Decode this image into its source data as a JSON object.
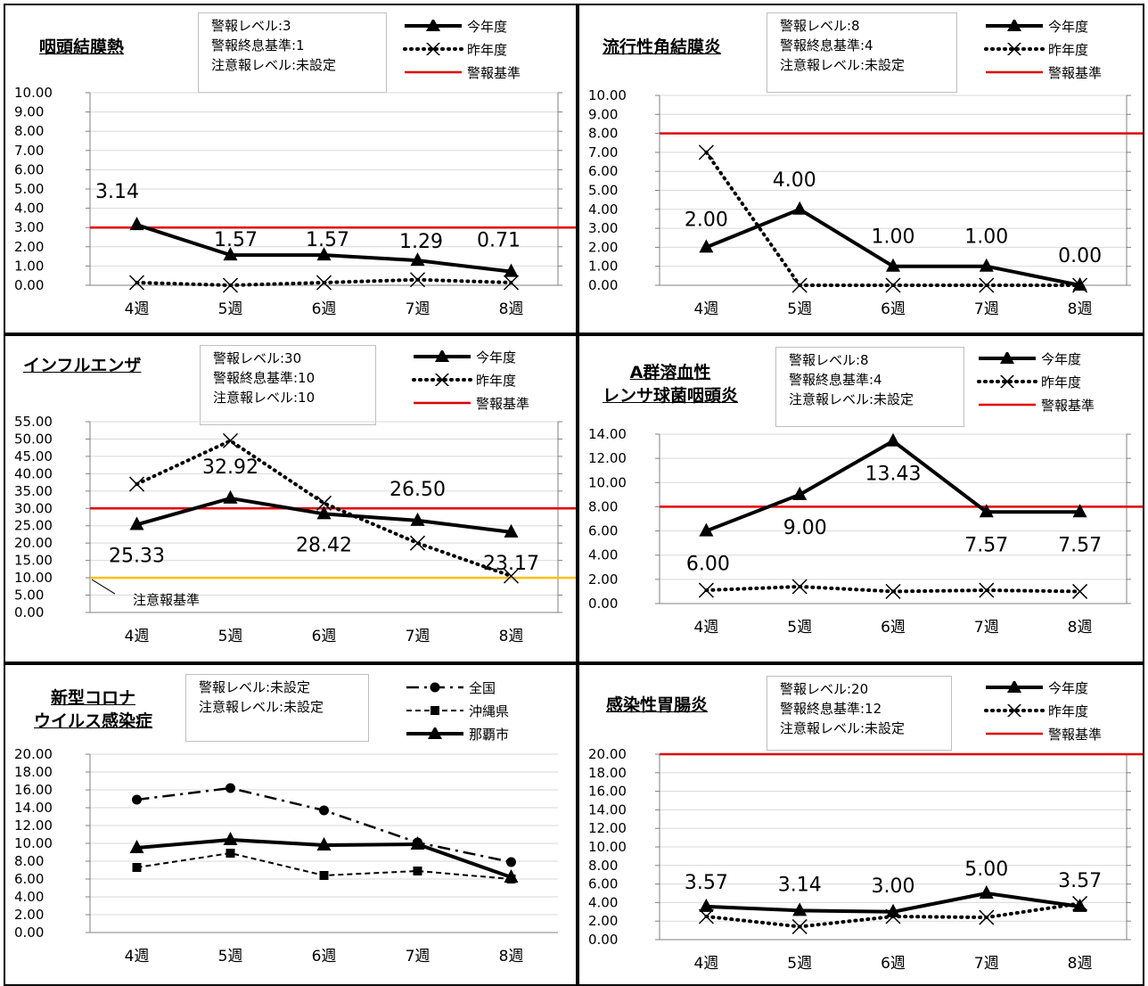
{
  "charts": [
    {
      "id": "p1",
      "title_lines": [
        "咽頭結膜熱"
      ],
      "info": [
        "警報レベル:3",
        "警報終息基準:1",
        "注意報レベル:未設定"
      ],
      "legend": [
        {
          "label": "今年度",
          "style": "solid-triangle"
        },
        {
          "label": "昨年度",
          "style": "dotted-x"
        },
        {
          "label": "警報基準",
          "style": "red-line"
        }
      ]
    },
    {
      "id": "p2",
      "title_lines": [
        "流行性角結膜炎"
      ],
      "info": [
        "警報レベル:8",
        "警報終息基準:4",
        "注意報レベル:未設定"
      ],
      "legend": [
        {
          "label": "今年度",
          "style": "solid-triangle"
        },
        {
          "label": "昨年度",
          "style": "dotted-x"
        },
        {
          "label": "警報基準",
          "style": "red-line"
        }
      ]
    },
    {
      "id": "p3",
      "title_lines": [
        "インフルエンザ"
      ],
      "info": [
        "警報レベル:30",
        "警報終息基準:10",
        "注意報レベル:10"
      ],
      "legend": [
        {
          "label": "今年度",
          "style": "solid-triangle"
        },
        {
          "label": "昨年度",
          "style": "dotted-x"
        },
        {
          "label": "警報基準",
          "style": "red-line"
        }
      ]
    },
    {
      "id": "p4",
      "title_lines": [
        "A群溶血性",
        "レンサ球菌咽頭炎"
      ],
      "info": [
        "警報レベル:8",
        "警報終息基準:4",
        "注意報レベル:未設定"
      ],
      "legend": [
        {
          "label": "今年度",
          "style": "solid-triangle"
        },
        {
          "label": "昨年度",
          "style": "dotted-x"
        },
        {
          "label": "警報基準",
          "style": "red-line"
        }
      ]
    },
    {
      "id": "p5",
      "title_lines": [
        "新型コロナ",
        "ウイルス感染症"
      ],
      "info": [
        "警報レベル:未設定",
        "注意報レベル:未設定"
      ],
      "legend": [
        {
          "label": "全国",
          "style": "dashdot-circle"
        },
        {
          "label": "沖縄県",
          "style": "dashed-square"
        },
        {
          "label": "那覇市",
          "style": "solid-triangle"
        }
      ]
    },
    {
      "id": "p6",
      "title_lines": [
        "感染性胃腸炎"
      ],
      "info": [
        "警報レベル:20",
        "警報終息基準:12",
        "注意報レベル:未設定"
      ],
      "legend": [
        {
          "label": "今年度",
          "style": "solid-triangle"
        },
        {
          "label": "昨年度",
          "style": "dotted-x"
        },
        {
          "label": "警報基準",
          "style": "red-line"
        }
      ]
    }
  ],
  "chart_data": [
    {
      "type": "line",
      "title": "咽頭結膜熱",
      "categories": [
        "4週",
        "5週",
        "6週",
        "7週",
        "8週"
      ],
      "ylim": [
        0,
        10
      ],
      "ystep": 1,
      "series": [
        {
          "name": "今年度",
          "values": [
            3.14,
            1.57,
            1.57,
            1.29,
            0.71
          ],
          "style": "solid-triangle",
          "labels": [
            "3.14",
            "1.57",
            "1.57",
            "1.29",
            "0.71"
          ]
        },
        {
          "name": "昨年度",
          "values": [
            0.14,
            0.0,
            0.14,
            0.29,
            0.14
          ],
          "style": "dotted-x"
        }
      ],
      "hlines": [
        {
          "name": "警報基準",
          "value": 3,
          "color": "#e00000"
        }
      ],
      "grid": true
    },
    {
      "type": "line",
      "title": "流行性角結膜炎",
      "categories": [
        "4週",
        "5週",
        "6週",
        "7週",
        "8週"
      ],
      "ylim": [
        0,
        10
      ],
      "ystep": 1,
      "series": [
        {
          "name": "今年度",
          "values": [
            2.0,
            4.0,
            1.0,
            1.0,
            0.0
          ],
          "style": "solid-triangle",
          "labels": [
            "2.00",
            "4.00",
            "1.00",
            "1.00",
            "0.00"
          ]
        },
        {
          "name": "昨年度",
          "values": [
            7.0,
            0.0,
            0.0,
            0.0,
            0.0
          ],
          "style": "dotted-x"
        }
      ],
      "hlines": [
        {
          "name": "警報基準",
          "value": 8,
          "color": "#e00000"
        }
      ],
      "grid": true
    },
    {
      "type": "line",
      "title": "インフルエンザ",
      "categories": [
        "4週",
        "5週",
        "6週",
        "7週",
        "8週"
      ],
      "ylim": [
        0,
        55
      ],
      "ystep": 5,
      "series": [
        {
          "name": "今年度",
          "values": [
            25.33,
            32.92,
            28.42,
            26.5,
            23.17
          ],
          "style": "solid-triangle",
          "labels": [
            "25.33",
            "32.92",
            "28.42",
            "26.50",
            "23.17"
          ]
        },
        {
          "name": "昨年度",
          "values": [
            37.0,
            49.5,
            31.5,
            20.0,
            10.5
          ],
          "style": "dotted-x"
        }
      ],
      "hlines": [
        {
          "name": "警報基準",
          "value": 30,
          "color": "#e00000"
        },
        {
          "name": "注意報基準",
          "value": 10,
          "color": "#ffc000"
        }
      ],
      "annotations": [
        "注意報基準"
      ],
      "grid": true
    },
    {
      "type": "line",
      "title": "A群溶血性レンサ球菌咽頭炎",
      "categories": [
        "4週",
        "5週",
        "6週",
        "7週",
        "8週"
      ],
      "ylim": [
        0,
        14
      ],
      "ystep": 2,
      "series": [
        {
          "name": "今年度",
          "values": [
            6.0,
            9.0,
            13.43,
            7.57,
            7.57
          ],
          "style": "solid-triangle",
          "labels": [
            "6.00",
            "9.00",
            "13.43",
            "7.57",
            "7.57"
          ]
        },
        {
          "name": "昨年度",
          "values": [
            1.1,
            1.4,
            1.0,
            1.1,
            1.0
          ],
          "style": "dotted-x"
        }
      ],
      "hlines": [
        {
          "name": "警報基準",
          "value": 8,
          "color": "#e00000"
        }
      ],
      "grid": true
    },
    {
      "type": "line",
      "title": "新型コロナウイルス感染症",
      "categories": [
        "4週",
        "5週",
        "6週",
        "7週",
        "8週"
      ],
      "ylim": [
        0,
        20
      ],
      "ystep": 2,
      "series": [
        {
          "name": "全国",
          "values": [
            14.9,
            16.2,
            13.7,
            10.1,
            7.9
          ],
          "style": "dashdot-circle"
        },
        {
          "name": "沖縄県",
          "values": [
            7.3,
            8.9,
            6.4,
            6.9,
            6.0
          ],
          "style": "dashed-square"
        },
        {
          "name": "那覇市",
          "values": [
            9.5,
            10.4,
            9.8,
            9.9,
            6.2
          ],
          "style": "solid-triangle"
        }
      ],
      "hlines": [],
      "grid": true
    },
    {
      "type": "line",
      "title": "感染性胃腸炎",
      "categories": [
        "4週",
        "5週",
        "6週",
        "7週",
        "8週"
      ],
      "ylim": [
        0,
        20
      ],
      "ystep": 2,
      "series": [
        {
          "name": "今年度",
          "values": [
            3.57,
            3.14,
            3.0,
            5.0,
            3.57
          ],
          "style": "solid-triangle",
          "labels": [
            "3.57",
            "3.14",
            "3.00",
            "5.00",
            "3.57"
          ]
        },
        {
          "name": "昨年度",
          "values": [
            2.5,
            1.4,
            2.5,
            2.4,
            3.9
          ],
          "style": "dotted-x"
        }
      ],
      "hlines": [
        {
          "name": "警報基準",
          "value": 20,
          "color": "#e00000"
        }
      ],
      "grid": true
    }
  ]
}
